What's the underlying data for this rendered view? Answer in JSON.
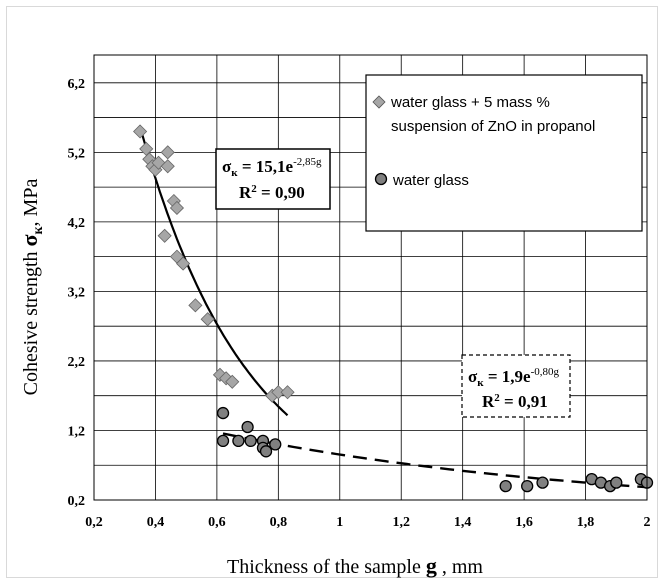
{
  "chart_data": {
    "type": "scatter",
    "xlabel_prefix": "Thickness of the sample",
    "xlabel_var": "g",
    "xlabel_suffix": ", mm",
    "ylabel_prefix": "Cohesive strength",
    "ylabel_sym": "σ",
    "ylabel_sub": "к",
    "ylabel_suffix": ", MPa",
    "xlim": [
      0.2,
      2.0
    ],
    "ylim": [
      0.2,
      6.6
    ],
    "xticks": [
      "0,2",
      "0,4",
      "0,6",
      "0,8",
      "1",
      "1,2",
      "1,4",
      "1,6",
      "1,8",
      "2"
    ],
    "xtick_values": [
      0.2,
      0.4,
      0.6,
      0.8,
      1.0,
      1.2,
      1.4,
      1.6,
      1.8,
      2.0
    ],
    "yticks": [
      "0,2",
      "1,2",
      "2,2",
      "3,2",
      "4,2",
      "5,2",
      "6,2"
    ],
    "ytick_values": [
      0.2,
      1.2,
      2.2,
      3.2,
      4.2,
      5.2,
      6.2
    ],
    "grid": true,
    "legend_position": "top-right",
    "series": [
      {
        "name": "water glass + 5 mass % suspension of ZnO in propanol",
        "legend_line1": "water glass + 5 mass %",
        "legend_line2": "suspension of ZnO in propanol",
        "marker": "diamond",
        "color": "#a6a6a6",
        "x": [
          0.35,
          0.37,
          0.38,
          0.39,
          0.4,
          0.41,
          0.43,
          0.44,
          0.44,
          0.46,
          0.47,
          0.47,
          0.49,
          0.53,
          0.57,
          0.61,
          0.63,
          0.65,
          0.78,
          0.8,
          0.83
        ],
        "y": [
          5.5,
          5.25,
          5.1,
          5.0,
          4.95,
          5.05,
          4.0,
          5.2,
          5.0,
          4.5,
          4.4,
          3.7,
          3.6,
          3.0,
          2.8,
          2.0,
          1.95,
          1.9,
          1.7,
          1.75,
          1.75
        ],
        "fit": {
          "a": 15.1,
          "b": -2.85,
          "x_range": [
            0.35,
            0.83
          ],
          "style": "solid"
        }
      },
      {
        "name": "water glass",
        "legend_line1": "water glass",
        "marker": "circle",
        "color": "#808080",
        "x": [
          0.62,
          0.62,
          0.67,
          0.7,
          0.71,
          0.75,
          0.75,
          0.76,
          0.79,
          1.54,
          1.61,
          1.66,
          1.82,
          1.85,
          1.88,
          1.9,
          1.98,
          2.0
        ],
        "y": [
          1.45,
          1.05,
          1.05,
          1.25,
          1.05,
          1.05,
          0.95,
          0.9,
          1.0,
          0.4,
          0.4,
          0.45,
          0.5,
          0.45,
          0.4,
          0.45,
          0.5,
          0.45
        ],
        "fit": {
          "a": 1.9,
          "b": -0.8,
          "x_range": [
            0.62,
            2.0
          ],
          "style": "dashed"
        }
      }
    ],
    "annotations": [
      {
        "id": "fit1",
        "lhs_sym": "σ",
        "lhs_sub": "к",
        "coef": " = 15,1e",
        "exp": "-2,85g",
        "r2_label": "R",
        "r2_exp": "2",
        "r2_value": " = 0,90"
      },
      {
        "id": "fit2",
        "lhs_sym": "σ",
        "lhs_sub": "к",
        "coef": " = 1,9e",
        "exp": "-0,80g",
        "r2_label": "R",
        "r2_exp": "2",
        "r2_value": " = 0,91"
      }
    ]
  }
}
